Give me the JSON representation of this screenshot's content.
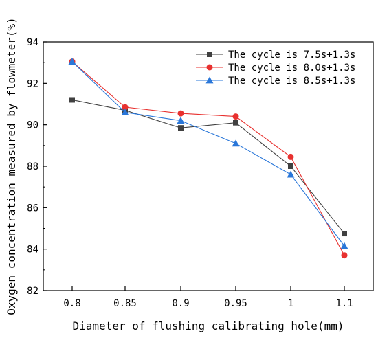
{
  "chart_data": {
    "type": "line",
    "title": "",
    "xlabel": "Diameter of flushing calibrating hole(mm)",
    "ylabel": "Oxygen concentration measured by flowmeter(%)",
    "categories": [
      "0.8",
      "0.85",
      "0.9",
      "0.95",
      "1",
      "1.1"
    ],
    "ylim": [
      82,
      94
    ],
    "yticks": [
      "82",
      "84",
      "86",
      "88",
      "90",
      "92",
      "94"
    ],
    "grid": false,
    "legend_position": "top-right",
    "series": [
      {
        "name": "The cycle is 7.5s+1.3s",
        "color": "#404040",
        "marker": "square",
        "values": [
          91.2,
          90.7,
          89.85,
          90.1,
          88.0,
          84.75
        ]
      },
      {
        "name": "The cycle is 8.0s+1.3s",
        "color": "#e8312f",
        "marker": "circle",
        "values": [
          93.05,
          90.85,
          90.55,
          90.4,
          88.45,
          83.7
        ]
      },
      {
        "name": "The cycle is 8.5s+1.3s",
        "color": "#2a77d9",
        "marker": "triangle",
        "values": [
          93.05,
          90.6,
          90.2,
          89.1,
          87.6,
          84.15
        ]
      }
    ]
  }
}
